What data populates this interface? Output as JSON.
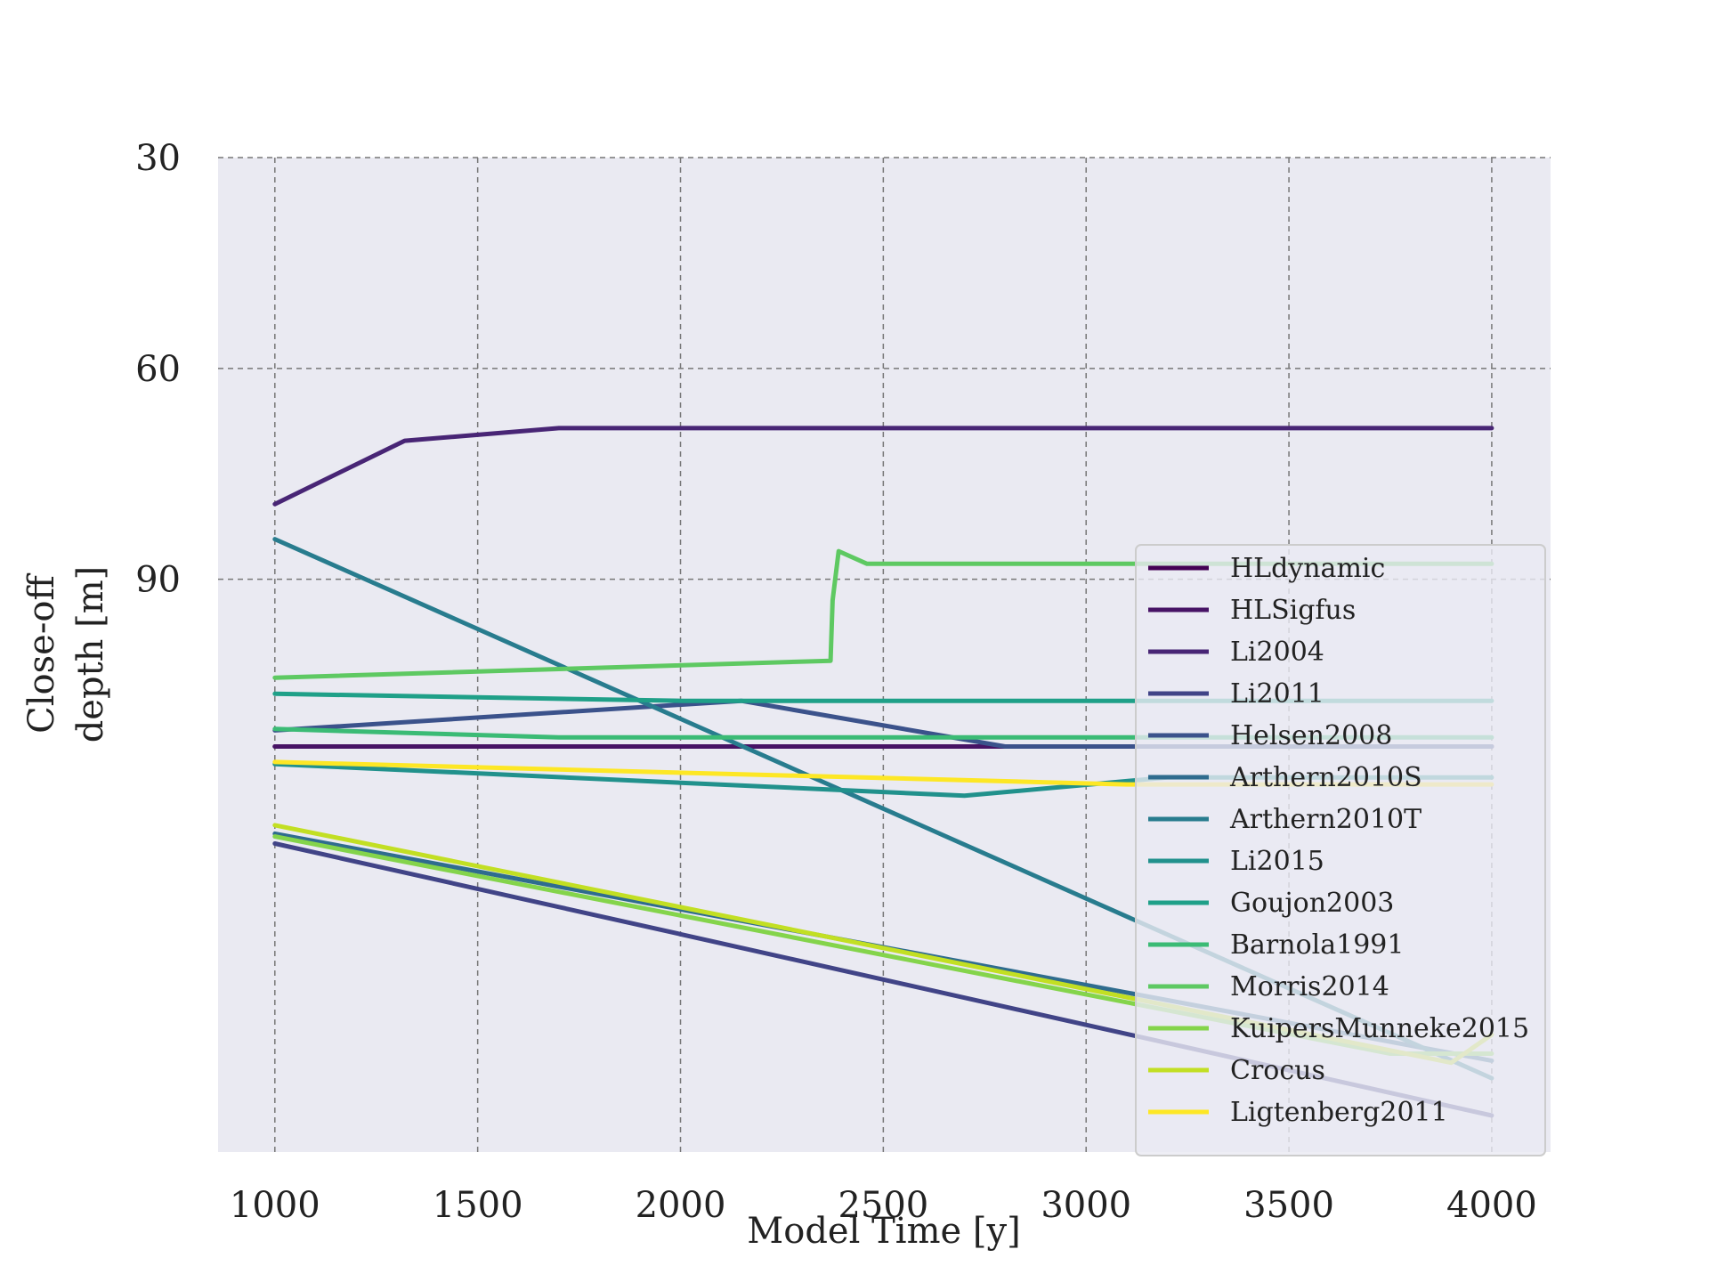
{
  "chart_data": {
    "type": "line",
    "title": "",
    "xlabel": "Model Time [y]",
    "ylabel_lines": [
      "Close-off",
      "depth [m]"
    ],
    "xlim": [
      860,
      4145
    ],
    "ylim": [
      171.5,
      30
    ],
    "y_inverted": true,
    "xticks": [
      1000,
      1500,
      2000,
      2500,
      3000,
      3500,
      4000
    ],
    "yticks": [
      30,
      60,
      90
    ],
    "grid": true,
    "legend_position": "lower-right",
    "background": "#eaeaf2",
    "series": [
      {
        "name": "HLdynamic",
        "color": "#440154",
        "x": [
          1000,
          4000
        ],
        "y": [
          113.8,
          113.8
        ]
      },
      {
        "name": "HLSigfus",
        "color": "#471365",
        "x": [
          1000,
          4000
        ],
        "y": [
          113.8,
          113.8
        ]
      },
      {
        "name": "Li2004",
        "color": "#482575",
        "x": [
          1000,
          1320,
          1700,
          4000
        ],
        "y": [
          79.3,
          70.3,
          68.5,
          68.5
        ]
      },
      {
        "name": "Li2011",
        "color": "#414487",
        "x": [
          1000,
          4000
        ],
        "y": [
          127.6,
          166.3
        ]
      },
      {
        "name": "Helsen2008",
        "color": "#3b528b",
        "x": [
          1000,
          2150,
          2800,
          4000
        ],
        "y": [
          111.5,
          107.3,
          113.8,
          113.8
        ]
      },
      {
        "name": "Arthern2010S",
        "color": "#2f6c8e",
        "x": [
          1000,
          4000
        ],
        "y": [
          126.2,
          158.5
        ]
      },
      {
        "name": "Arthern2010T",
        "color": "#287c8e",
        "x": [
          1000,
          4000
        ],
        "y": [
          84.3,
          161.0
        ]
      },
      {
        "name": "Li2015",
        "color": "#21918c",
        "x": [
          1000,
          2700,
          3200,
          4000
        ],
        "y": [
          116.3,
          120.8,
          118.2,
          118.2
        ]
      },
      {
        "name": "Goujon2003",
        "color": "#1fa088",
        "x": [
          1000,
          2000,
          4000
        ],
        "y": [
          106.3,
          107.3,
          107.3
        ]
      },
      {
        "name": "Barnola1991",
        "color": "#3bbb75",
        "x": [
          1000,
          1700,
          4000
        ],
        "y": [
          111.3,
          112.5,
          112.5
        ]
      },
      {
        "name": "Morris2014",
        "color": "#5ec962",
        "x": [
          1000,
          2370,
          2375,
          2390,
          2460,
          4000
        ],
        "y": [
          104.0,
          101.6,
          93.0,
          86.0,
          87.8,
          87.8
        ]
      },
      {
        "name": "KuipersMunneke2015",
        "color": "#84d44b",
        "x": [
          1000,
          3750,
          4000
        ],
        "y": [
          126.6,
          157.5,
          157.5
        ]
      },
      {
        "name": "Crocus",
        "color": "#c2df23",
        "x": [
          1000,
          3900,
          4000
        ],
        "y": [
          125.0,
          158.8,
          154.8
        ]
      },
      {
        "name": "Ligtenberg2011",
        "color": "#fde725",
        "x": [
          1000,
          3100,
          4000
        ],
        "y": [
          116.0,
          119.2,
          119.2
        ]
      }
    ]
  }
}
